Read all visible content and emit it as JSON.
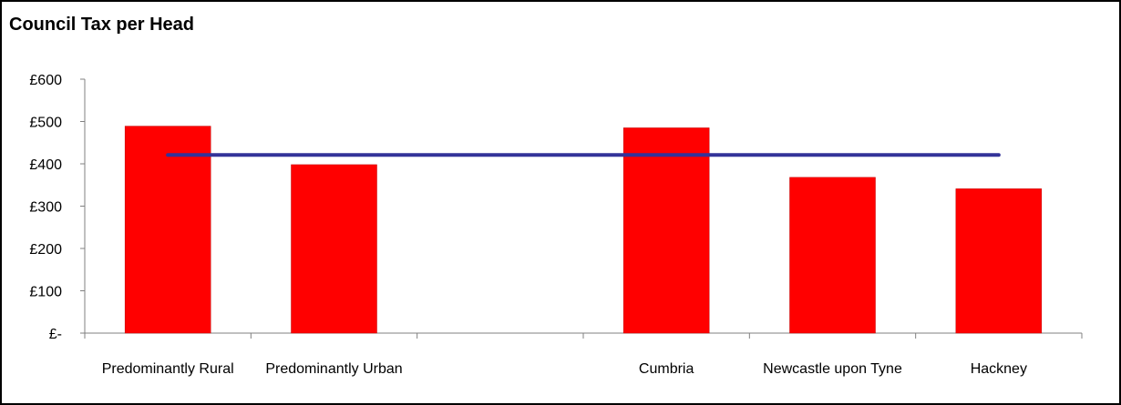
{
  "chart_data": {
    "type": "bar",
    "title": "Council Tax per Head",
    "xlabel": "",
    "ylabel": "",
    "categories": [
      "Predominantly Rural",
      "Predominantly Urban",
      "",
      "Cumbria",
      "Newcastle upon Tyne",
      "Hackney"
    ],
    "series": [
      {
        "type": "bar",
        "color": "#ff0000",
        "values": [
          489,
          398,
          null,
          485,
          368,
          341
        ]
      },
      {
        "type": "line",
        "color": "#333399",
        "values": [
          421,
          421,
          421,
          421,
          421,
          421
        ]
      }
    ],
    "ylim": [
      0,
      600
    ],
    "yticks": [
      0,
      100,
      200,
      300,
      400,
      500,
      600
    ],
    "ytick_labels": [
      "£-",
      "£100",
      "£200",
      "£300",
      "£400",
      "£500",
      "£600"
    ],
    "grid": false,
    "legend": "none"
  }
}
